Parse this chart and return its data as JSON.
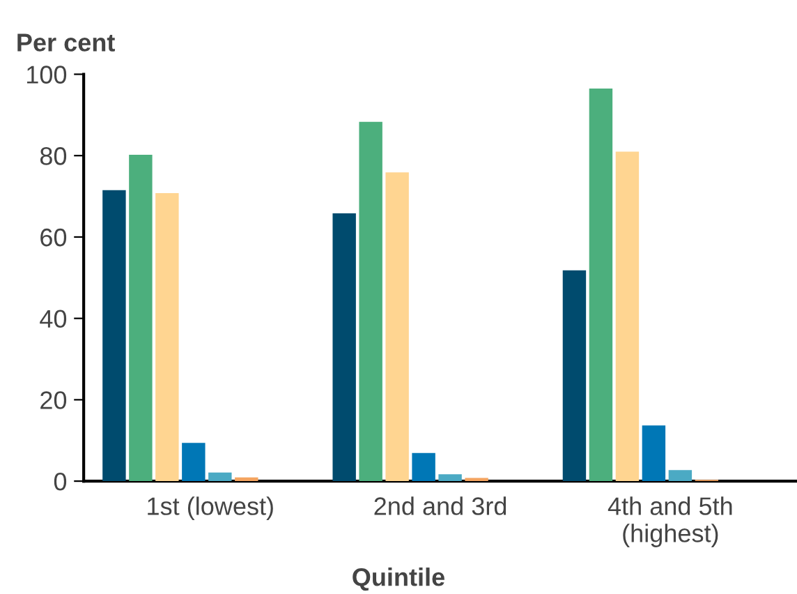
{
  "chart_data": {
    "type": "bar",
    "ylabel": "Per cent",
    "xlabel": "Quintile",
    "categories": [
      "1st (lowest)",
      "2nd and 3rd",
      "4th and 5th\n(highest)"
    ],
    "series": [
      {
        "color": "#004b6e",
        "values": [
          71.5,
          65.8,
          51.8
        ]
      },
      {
        "color": "#4caf7d",
        "values": [
          80.2,
          88.3,
          96.5
        ]
      },
      {
        "color": "#ffd591",
        "values": [
          70.8,
          75.9,
          81
        ]
      },
      {
        "color": "#0077b6",
        "values": [
          9.4,
          6.9,
          13.7
        ]
      },
      {
        "color": "#4baac4",
        "values": [
          2.1,
          1.7,
          2.7
        ]
      },
      {
        "color": "#f4a460",
        "values": [
          0.9,
          0.8,
          0.3
        ]
      }
    ],
    "ylim": [
      0,
      100
    ],
    "yticks": [
      0,
      20,
      40,
      60,
      80,
      100
    ],
    "grid": false,
    "legend": false
  }
}
